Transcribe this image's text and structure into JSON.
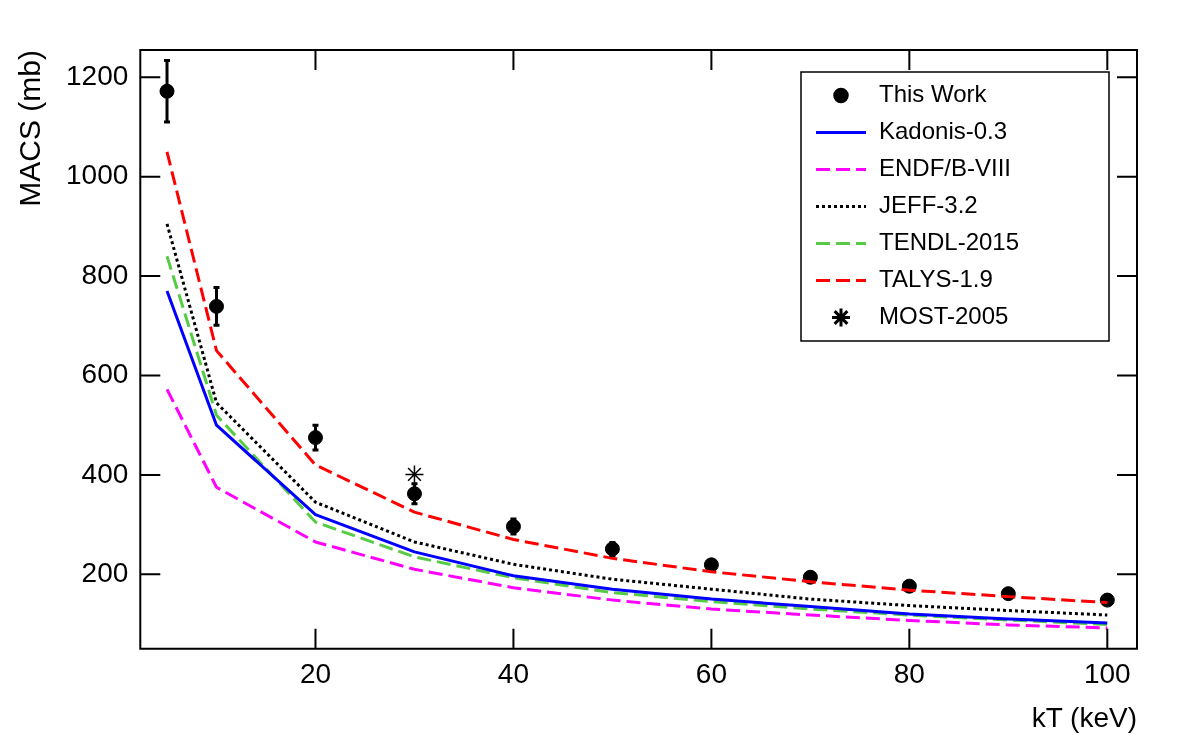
{
  "chart_data": {
    "type": "line",
    "xlabel": "kT (keV)",
    "ylabel": "MACS (mb)",
    "xlim": [
      2.3,
      103
    ],
    "ylim": [
      50,
      1255
    ],
    "xticks": [
      20,
      40,
      60,
      80,
      100
    ],
    "yticks": [
      200,
      400,
      600,
      800,
      1000,
      1200
    ],
    "grid": false,
    "legend": "top right",
    "x": [
      5,
      10,
      20,
      30,
      40,
      50,
      60,
      70,
      80,
      90,
      100
    ],
    "series": [
      {
        "name": "This Work",
        "type": "scatter",
        "marker": "circle",
        "color": "#000000",
        "values": [
          1172,
          739,
          475,
          362,
          296,
          251,
          219,
          194,
          176,
          161,
          148
        ],
        "errors": [
          62,
          38,
          25,
          20,
          15,
          13,
          null,
          null,
          null,
          null,
          null
        ]
      },
      {
        "name": "Kadonis-0.3",
        "color": "#0000ff",
        "line_style": "solid",
        "marker": "none",
        "values": [
          770,
          500,
          320,
          245,
          197,
          170,
          150,
          135,
          120,
          110,
          102
        ]
      },
      {
        "name": "ENDF/B-VIII",
        "color": "#ff00ff",
        "line_style": "dashed",
        "marker": "none",
        "values": [
          572,
          375,
          265,
          210,
          173,
          148,
          130,
          118,
          107,
          98,
          92
        ]
      },
      {
        "name": "JEFF-3.2",
        "color": "#000000",
        "line_style": "dotted",
        "marker": "none",
        "values": [
          905,
          545,
          345,
          265,
          220,
          190,
          170,
          150,
          137,
          127,
          118
        ]
      },
      {
        "name": "TENDL-2015",
        "color": "#55cc44",
        "line_style": "dashed",
        "marker": "none",
        "values": [
          840,
          520,
          305,
          235,
          193,
          163,
          145,
          130,
          118,
          108,
          99
        ]
      },
      {
        "name": "TALYS-1.9",
        "color": "#ff0000",
        "line_style": "dashed",
        "marker": "none",
        "values": [
          1050,
          650,
          420,
          325,
          270,
          232,
          205,
          185,
          168,
          155,
          143
        ]
      },
      {
        "name": "MOST-2005",
        "type": "scatter",
        "marker": "cross",
        "color": "#000000",
        "x": [
          30
        ],
        "values": [
          401
        ]
      }
    ]
  }
}
